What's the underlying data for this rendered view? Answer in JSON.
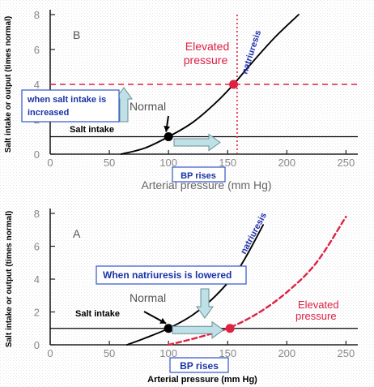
{
  "chart_data": [
    {
      "panel": "B",
      "type": "line",
      "panel_label": "B",
      "xlabel": "Arterial pressure (mm Hg)",
      "ylabel": "Salt intake or output (times normal)",
      "xlim": [
        0,
        260
      ],
      "ylim": [
        0,
        8
      ],
      "xticks": [
        "0",
        "50",
        "100",
        "150",
        "200",
        "250"
      ],
      "yticks": [
        "0",
        "2",
        "4",
        "6",
        "8"
      ],
      "grid": false,
      "series": [
        {
          "name": "natriuresis",
          "color": "#000000",
          "style": "solid",
          "x": [
            60,
            80,
            100,
            120,
            140,
            155,
            170,
            190,
            210
          ],
          "y": [
            0,
            0.35,
            1.0,
            1.8,
            2.95,
            4.0,
            5.2,
            6.7,
            8.0
          ]
        }
      ],
      "reference_lines": [
        {
          "label": "Salt intake",
          "orientation": "horizontal",
          "y": 1,
          "x_range": [
            0,
            260
          ],
          "color": "#000000",
          "style": "solid"
        },
        {
          "label": "",
          "orientation": "horizontal",
          "y": 4,
          "x_range": [
            0,
            260
          ],
          "color": "#dd2244",
          "style": "dashed"
        },
        {
          "label": "",
          "orientation": "vertical",
          "x": 158,
          "y_range": [
            0,
            8
          ],
          "color": "#dd2244",
          "style": "dotted"
        }
      ],
      "points": [
        {
          "label": "Normal",
          "x": 100,
          "y": 1,
          "color": "#000000"
        },
        {
          "label": "Elevated pressure",
          "x": 155,
          "y": 4,
          "color": "#dd2244"
        }
      ],
      "annotations": {
        "normal": "Normal",
        "elevated_line1": "Elevated",
        "elevated_line2": "pressure",
        "natriuresis": "natriuresis",
        "salt_intake": "Salt intake",
        "box_line1": "when salt intake is",
        "box_line2": "increased",
        "bp_rises": "BP rises"
      }
    },
    {
      "panel": "A",
      "type": "line",
      "panel_label": "A",
      "xlabel": "Arterial pressure (mm Hg)",
      "ylabel": "Salt intake or output (times normal)",
      "xlim": [
        0,
        260
      ],
      "ylim": [
        0,
        8
      ],
      "xticks": [
        "0",
        "50",
        "100",
        "150",
        "200",
        "250"
      ],
      "yticks": [
        "0",
        "2",
        "4",
        "6",
        "8"
      ],
      "grid": false,
      "series": [
        {
          "name": "natriuresis",
          "color": "#000000",
          "style": "solid",
          "x": [
            65,
            80,
            100,
            120,
            140,
            160,
            180
          ],
          "y": [
            0,
            0.4,
            1.0,
            1.8,
            3.0,
            4.7,
            7.3
          ]
        },
        {
          "name": "Elevated pressure",
          "color": "#dd2244",
          "style": "dashed",
          "x": [
            100,
            125,
            150,
            175,
            200,
            225,
            250
          ],
          "y": [
            0,
            0.45,
            1.0,
            1.9,
            3.2,
            5.0,
            7.8
          ]
        }
      ],
      "reference_lines": [
        {
          "label": "Salt intake",
          "orientation": "horizontal",
          "y": 1,
          "x_range": [
            0,
            260
          ],
          "color": "#000000",
          "style": "solid"
        }
      ],
      "points": [
        {
          "label": "Normal",
          "x": 100,
          "y": 1,
          "color": "#000000"
        },
        {
          "label": "Elevated pressure",
          "x": 152,
          "y": 1,
          "color": "#dd2244"
        }
      ],
      "annotations": {
        "normal": "Normal",
        "elevated_line1": "Elevated",
        "elevated_line2": "pressure",
        "natriuresis": "natriuresis",
        "salt_intake": "Salt intake",
        "box_line1": "When natriuresis is lowered",
        "bp_rises": "BP rises"
      }
    }
  ],
  "colors": {
    "curve": "#000000",
    "elevated": "#dd2244",
    "natriuresis_label": "#2233aa",
    "callout_text": "#1a33a6",
    "callout_border": "#3355cc",
    "arrow_fill": "#bfe0e6",
    "arrow_stroke": "#6a8f96",
    "axis": "#222222",
    "tick_label": "#888888"
  }
}
